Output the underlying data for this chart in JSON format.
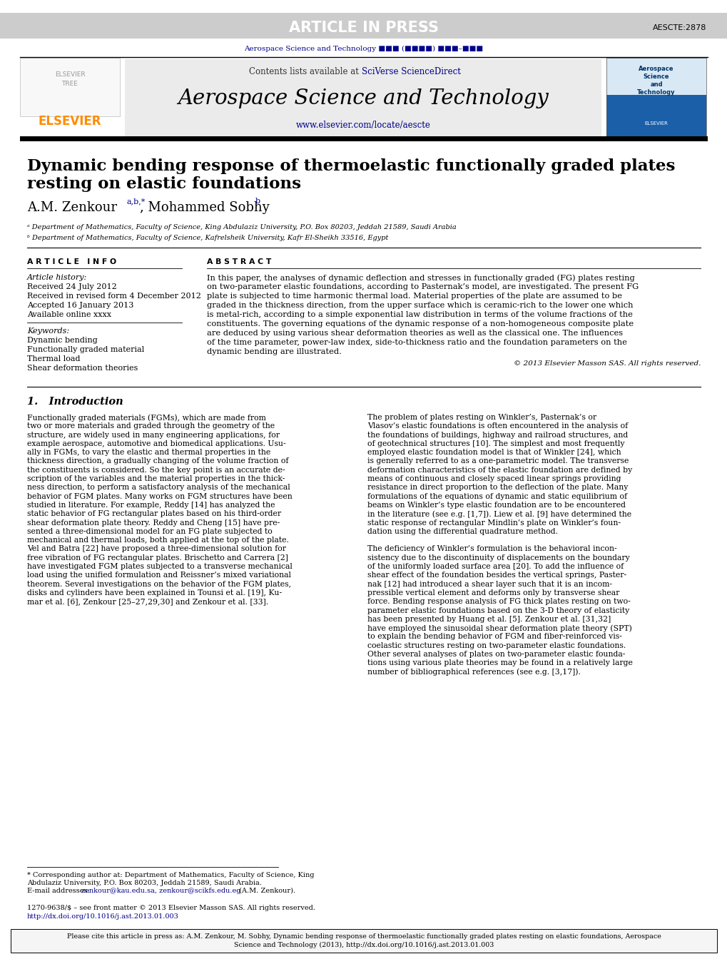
{
  "page_bg": "#ffffff",
  "header_bar_color": "#cccccc",
  "header_bar_text": "ARTICLE IN PRESS",
  "header_bar_text_color": "#ffffff",
  "article_id": "AESCTE:2878",
  "journal_ref_text": "Aerospace Science and Technology ■■■ (■■■■) ■■■–■■■",
  "journal_ref_color": "#00008B",
  "elsevier_logo_color": "#FF8C00",
  "header_box_bg": "#ebebeb",
  "sciverse_color": "#00008B",
  "journal_title": "Aerospace Science and Technology",
  "journal_url": "www.elsevier.com/locate/aescte",
  "journal_url_color": "#00008B",
  "article_info_title": "A R T I C L E   I N F O",
  "article_history_label": "Article history:",
  "received": "Received 24 July 2012",
  "revised": "Received in revised form 4 December 2012",
  "accepted": "Accepted 16 January 2013",
  "available": "Available online xxxx",
  "keywords_label": "Keywords:",
  "keyword1": "Dynamic bending",
  "keyword2": "Functionally graded material",
  "keyword3": "Thermal load",
  "keyword4": "Shear deformation theories",
  "abstract_title": "A B S T R A C T",
  "abstract_text": "In this paper, the analyses of dynamic deflection and stresses in functionally graded (FG) plates resting\non two-parameter elastic foundations, according to Pasternak’s model, are investigated. The present FG\nplate is subjected to time harmonic thermal load. Material properties of the plate are assumed to be\ngraded in the thickness direction, from the upper surface which is ceramic-rich to the lower one which\nis metal-rich, according to a simple exponential law distribution in terms of the volume fractions of the\nconstituents. The governing equations of the dynamic response of a non-homogeneous composite plate\nare deduced by using various shear deformation theories as well as the classical one. The influences\nof the time parameter, power-law index, side-to-thickness ratio and the foundation parameters on the\ndynamic bending are illustrated.",
  "copyright": "© 2013 Elsevier Masson SAS. All rights reserved.",
  "section1_title": "1.   Introduction",
  "intro_col1": "Functionally graded materials (FGMs), which are made from\ntwo or more materials and graded through the geometry of the\nstructure, are widely used in many engineering applications, for\nexample aerospace, automotive and biomedical applications. Usu-\nally in FGMs, to vary the elastic and thermal properties in the\nthickness direction, a gradually changing of the volume fraction of\nthe constituents is considered. So the key point is an accurate de-\nscription of the variables and the material properties in the thick-\nness direction, to perform a satisfactory analysis of the mechanical\nbehavior of FGM plates. Many works on FGM structures have been\nstudied in literature. For example, Reddy [14] has analyzed the\nstatic behavior of FG rectangular plates based on his third-order\nshear deformation plate theory. Reddy and Cheng [15] have pre-\nsented a three-dimensional model for an FG plate subjected to\nmechanical and thermal loads, both applied at the top of the plate.\nVel and Batra [22] have proposed a three-dimensional solution for\nfree vibration of FG rectangular plates. Brischetto and Carrera [2]\nhave investigated FGM plates subjected to a transverse mechanical\nload using the unified formulation and Reissner’s mixed variational\ntheorem. Several investigations on the behavior of the FGM plates,\ndisks and cylinders have been explained in Tounsi et al. [19], Ku-\nmar et al. [6], Zenkour [25–27,29,30] and Zenkour et al. [33].",
  "intro_col2": "The problem of plates resting on Winkler’s, Pasternak’s or\nVlasov’s elastic foundations is often encountered in the analysis of\nthe foundations of buildings, highway and railroad structures, and\nof geotechnical structures [10]. The simplest and most frequently\nemployed elastic foundation model is that of Winkler [24], which\nis generally referred to as a one-parametric model. The transverse\ndeformation characteristics of the elastic foundation are defined by\nmeans of continuous and closely spaced linear springs providing\nresistance in direct proportion to the deflection of the plate. Many\nformulations of the equations of dynamic and static equilibrium of\nbeams on Winkler’s type elastic foundation are to be encountered\nin the literature (see e.g. [1,7]). Liew et al. [9] have determined the\nstatic response of rectangular Mindlin’s plate on Winkler’s foun-\ndation using the differential quadrature method.\n\nThe deficiency of Winkler’s formulation is the behavioral incon-\nsistency due to the discontinuity of displacements on the boundary\nof the uniformly loaded surface area [20]. To add the influence of\nshear effect of the foundation besides the vertical springs, Paster-\nnak [12] had introduced a shear layer such that it is an incom-\npressible vertical element and deforms only by transverse shear\nforce. Bending response analysis of FG thick plates resting on two-\nparameter elastic foundations based on the 3-D theory of elasticity\nhas been presented by Huang et al. [5]. Zenkour et al. [31,32]\nhave employed the sinusoidal shear deformation plate theory (SPT)\nto explain the bending behavior of FGM and fiber-reinforced vis-\ncoelastic structures resting on two-parameter elastic foundations.\nOther several analyses of plates on two-parameter elastic founda-\ntions using various plate theories may be found in a relatively large\nnumber of bibliographical references (see e.g. [3,17]).",
  "footnote_line1": "* Corresponding author at: Department of Mathematics, Faculty of Science, King",
  "footnote_line2": "Abdulaziz University, P.O. Box 80203, Jeddah 21589, Saudi Arabia.",
  "footnote_line3a": "E-mail addresses: ",
  "footnote_line3b": "zenkour@kau.edu.sa, zenkour@scikfs.edu.eg",
  "footnote_line3c": " (A.M. Zenkour).",
  "issn_line": "1270-9638/$ – see front matter © 2013 Elsevier Masson SAS. All rights reserved.",
  "doi_line": "http://dx.doi.org/10.1016/j.ast.2013.01.003",
  "cite_line1": "Please cite this article in press as: A.M. Zenkour, M. Sobhy, Dynamic bending response of thermoelastic functionally graded plates resting on elastic foundations, Aerospace",
  "cite_line2": "Science and Technology (2013), http://dx.doi.org/10.1016/j.ast.2013.01.003",
  "affil_a": "ᵃ Department of Mathematics, Faculty of Science, King Abdulaziz University, P.O. Box 80203, Jeddah 21589, Saudi Arabia",
  "affil_b": "ᵇ Department of Mathematics, Faculty of Science, Kafrelsheik University, Kafr El-Sheikh 33516, Egypt"
}
